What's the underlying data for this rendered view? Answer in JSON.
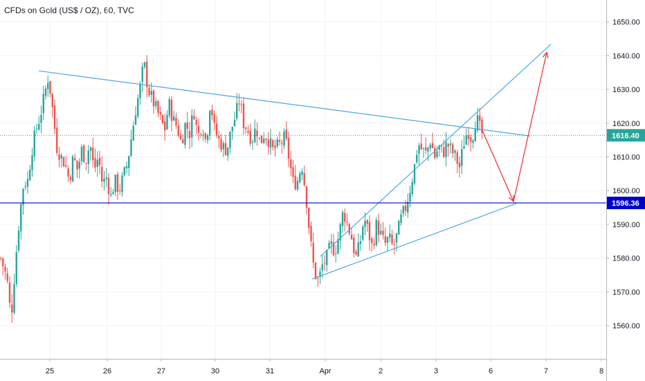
{
  "header": {
    "title": "CFDs on Gold (US$ / OZ), 60, TVC"
  },
  "colors": {
    "up": "#26a69a",
    "down": "#ef5350",
    "trendline": "#4aa8e0",
    "support": "#0000cc",
    "projection": "#ef2a2a",
    "current_price": "#26a69a",
    "grid": "#f0f3fa",
    "axis_text": "#131722"
  },
  "price_tags": {
    "current": "1616.40",
    "support": "1596.36"
  },
  "chart_data": {
    "type": "candlestick",
    "title": "CFDs on Gold (US$ / OZ), 60, TVC",
    "y_axis": {
      "range": [
        1550,
        1655
      ],
      "ticks": [
        1560,
        1570,
        1580,
        1590,
        1600,
        1610,
        1620,
        1630,
        1640,
        1650
      ],
      "tick_labels": [
        "1560.00",
        "1570.00",
        "1580.00",
        "1590.00",
        "1600.00",
        "1610.00",
        "1620.00",
        "1630.00",
        "1640.00",
        "1650.00"
      ]
    },
    "x_axis": {
      "labels": [
        {
          "label": "25",
          "t": 72
        },
        {
          "label": "26",
          "t": 155
        },
        {
          "label": "27",
          "t": 233
        },
        {
          "label": "30",
          "t": 311
        },
        {
          "label": "31",
          "t": 390
        },
        {
          "label": "Apr",
          "t": 470
        },
        {
          "label": "2",
          "t": 550
        },
        {
          "label": "3",
          "t": 630
        },
        {
          "label": "6",
          "t": 709
        },
        {
          "label": "7",
          "t": 789
        },
        {
          "label": "8",
          "t": 869
        }
      ]
    },
    "grid": true,
    "time_range": [
      0,
      880
    ],
    "current_price": 1616.4,
    "support_level": 1596.36,
    "close_path": [
      [
        1,
        1580
      ],
      [
        10,
        1574
      ],
      [
        16,
        1562
      ],
      [
        22,
        1578
      ],
      [
        28,
        1592
      ],
      [
        34,
        1602
      ],
      [
        40,
        1603
      ],
      [
        46,
        1612
      ],
      [
        52,
        1618
      ],
      [
        58,
        1622
      ],
      [
        64,
        1628
      ],
      [
        70,
        1634
      ],
      [
        76,
        1624
      ],
      [
        82,
        1613
      ],
      [
        88,
        1610
      ],
      [
        94,
        1608
      ],
      [
        100,
        1603
      ],
      [
        106,
        1610
      ],
      [
        112,
        1606
      ],
      [
        118,
        1612
      ],
      [
        124,
        1609
      ],
      [
        130,
        1614
      ],
      [
        136,
        1606
      ],
      [
        142,
        1610
      ],
      [
        148,
        1602
      ],
      [
        154,
        1604
      ],
      [
        160,
        1598
      ],
      [
        166,
        1603
      ],
      [
        172,
        1600
      ],
      [
        178,
        1604
      ],
      [
        184,
        1608
      ],
      [
        190,
        1616
      ],
      [
        196,
        1624
      ],
      [
        202,
        1630
      ],
      [
        208,
        1638
      ],
      [
        214,
        1630
      ],
      [
        220,
        1627
      ],
      [
        226,
        1624
      ],
      [
        232,
        1621
      ],
      [
        238,
        1618
      ],
      [
        244,
        1626
      ],
      [
        250,
        1621
      ],
      [
        256,
        1619
      ],
      [
        262,
        1614
      ],
      [
        268,
        1620
      ],
      [
        274,
        1617
      ],
      [
        280,
        1624
      ],
      [
        286,
        1616
      ],
      [
        292,
        1620
      ],
      [
        298,
        1614
      ],
      [
        304,
        1627
      ],
      [
        310,
        1618
      ],
      [
        316,
        1615
      ],
      [
        322,
        1613
      ],
      [
        328,
        1612
      ],
      [
        334,
        1618
      ],
      [
        340,
        1622
      ],
      [
        346,
        1627
      ],
      [
        352,
        1620
      ],
      [
        358,
        1618
      ],
      [
        364,
        1615
      ],
      [
        370,
        1619
      ],
      [
        376,
        1614
      ],
      [
        382,
        1617
      ],
      [
        388,
        1615
      ],
      [
        394,
        1612
      ],
      [
        400,
        1613
      ],
      [
        406,
        1614
      ],
      [
        412,
        1616
      ],
      [
        418,
        1609
      ],
      [
        424,
        1602
      ],
      [
        430,
        1603
      ],
      [
        436,
        1608
      ],
      [
        442,
        1599
      ],
      [
        448,
        1586
      ],
      [
        454,
        1576
      ],
      [
        460,
        1573
      ],
      [
        466,
        1578
      ],
      [
        472,
        1580
      ],
      [
        478,
        1584
      ],
      [
        484,
        1582
      ],
      [
        490,
        1587
      ],
      [
        496,
        1594
      ],
      [
        502,
        1590
      ],
      [
        508,
        1586
      ],
      [
        514,
        1580
      ],
      [
        520,
        1584
      ],
      [
        526,
        1592
      ],
      [
        532,
        1588
      ],
      [
        538,
        1583
      ],
      [
        544,
        1590
      ],
      [
        550,
        1587
      ],
      [
        556,
        1584
      ],
      [
        562,
        1586
      ],
      [
        568,
        1583
      ],
      [
        574,
        1587
      ],
      [
        580,
        1592
      ],
      [
        586,
        1595
      ],
      [
        592,
        1600
      ],
      [
        598,
        1606
      ],
      [
        604,
        1614
      ],
      [
        610,
        1612
      ],
      [
        616,
        1611
      ],
      [
        622,
        1615
      ],
      [
        628,
        1610
      ],
      [
        634,
        1613
      ],
      [
        640,
        1611
      ],
      [
        646,
        1614
      ],
      [
        652,
        1612
      ],
      [
        658,
        1610
      ],
      [
        664,
        1607
      ],
      [
        670,
        1614
      ],
      [
        676,
        1618
      ],
      [
        682,
        1615
      ],
      [
        688,
        1622
      ],
      [
        694,
        1618
      ],
      [
        698,
        1616.4
      ]
    ],
    "drawings": {
      "descending_trendline": [
        [
          56,
          1635.5
        ],
        [
          766,
          1616.2
        ]
      ],
      "rising_wedge_upper": [
        [
          463,
          1580.5
        ],
        [
          796,
          1643.4
        ]
      ],
      "rising_wedge_lower": [
        [
          451,
          1573.8
        ],
        [
          746,
          1596.2
        ]
      ],
      "support_line": 1596.36,
      "projection_path": [
        [
          697,
          1617.8
        ],
        [
          742,
          1596.8
        ],
        [
          790,
          1641
        ]
      ]
    }
  }
}
